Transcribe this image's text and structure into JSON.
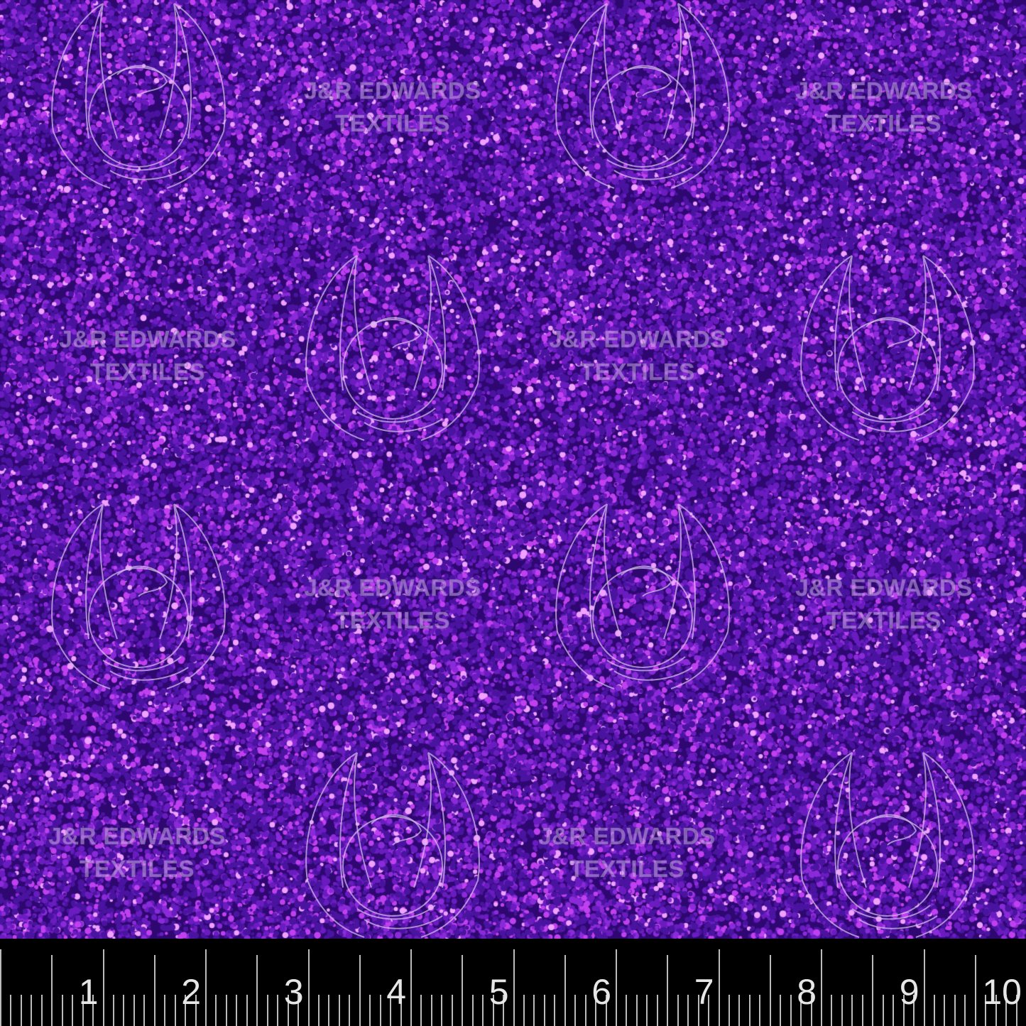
{
  "watermark": {
    "line1": "J&R EDWARDS",
    "line2": "TEXTILES"
  },
  "colors": {
    "background": "#3a0a80",
    "sparkle": "#e040ff",
    "ruler": "#000000"
  },
  "ruler": {
    "unit": "inch",
    "labels": [
      "1",
      "2",
      "3",
      "4",
      "5",
      "6",
      "7",
      "8",
      "9",
      "10"
    ]
  },
  "icons": [
    "dragon-icon"
  ]
}
